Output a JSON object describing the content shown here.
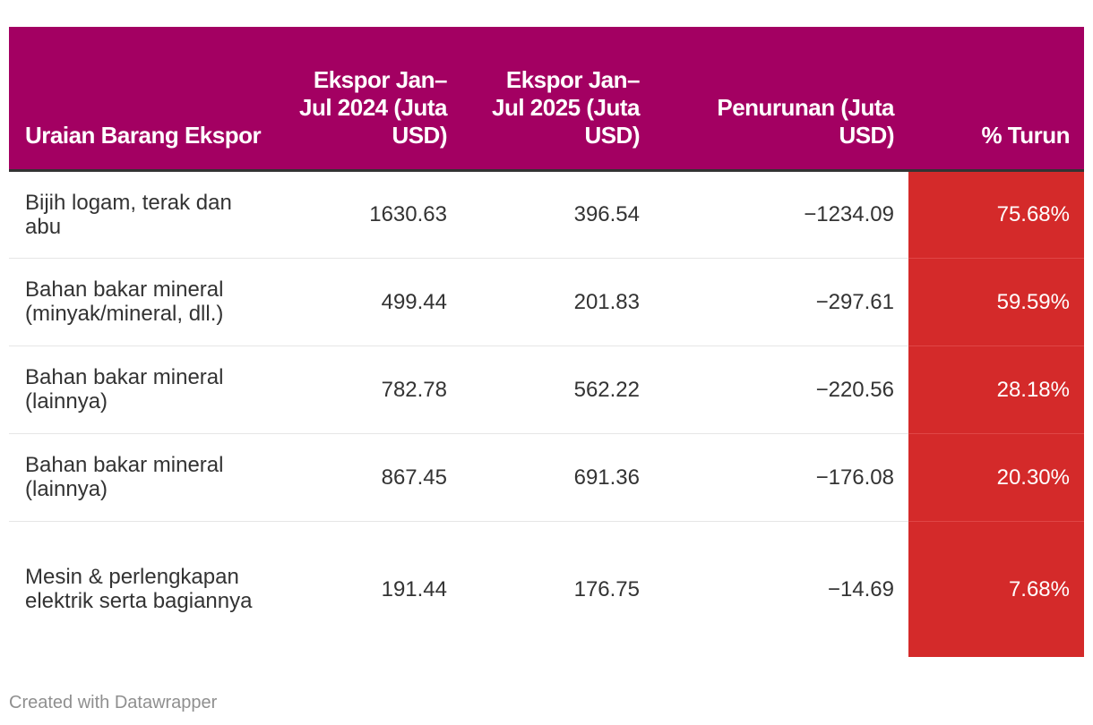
{
  "chart_data": {
    "type": "table",
    "columns": [
      "Uraian Barang Ekspor",
      "Ekspor Jan–Jul 2024 (Juta USD)",
      "Ekspor Jan–Jul 2025 (Juta USD)",
      "Penurunan (Juta USD)",
      "% Turun"
    ],
    "rows": [
      [
        "Bijih logam, terak dan abu",
        "1630.63",
        "396.54",
        "−1234.09",
        "75.68%"
      ],
      [
        "Bahan bakar mineral (minyak/mineral, dll.)",
        "499.44",
        "201.83",
        "−297.61",
        "59.59%"
      ],
      [
        "Bahan bakar mineral (lainnya)",
        "782.78",
        "562.22",
        "−220.56",
        "28.18%"
      ],
      [
        "Bahan bakar mineral (lainnya)",
        "867.45",
        "691.36",
        "−176.08",
        "20.30%"
      ],
      [
        "Mesin & perlengkapan elektrik serta bagiannya",
        "191.44",
        "176.75",
        "−14.69",
        "7.68%"
      ]
    ],
    "colors": {
      "header_background": "#a30062",
      "highlight_column": "#d42a2a"
    }
  },
  "footer": "Created with Datawrapper"
}
